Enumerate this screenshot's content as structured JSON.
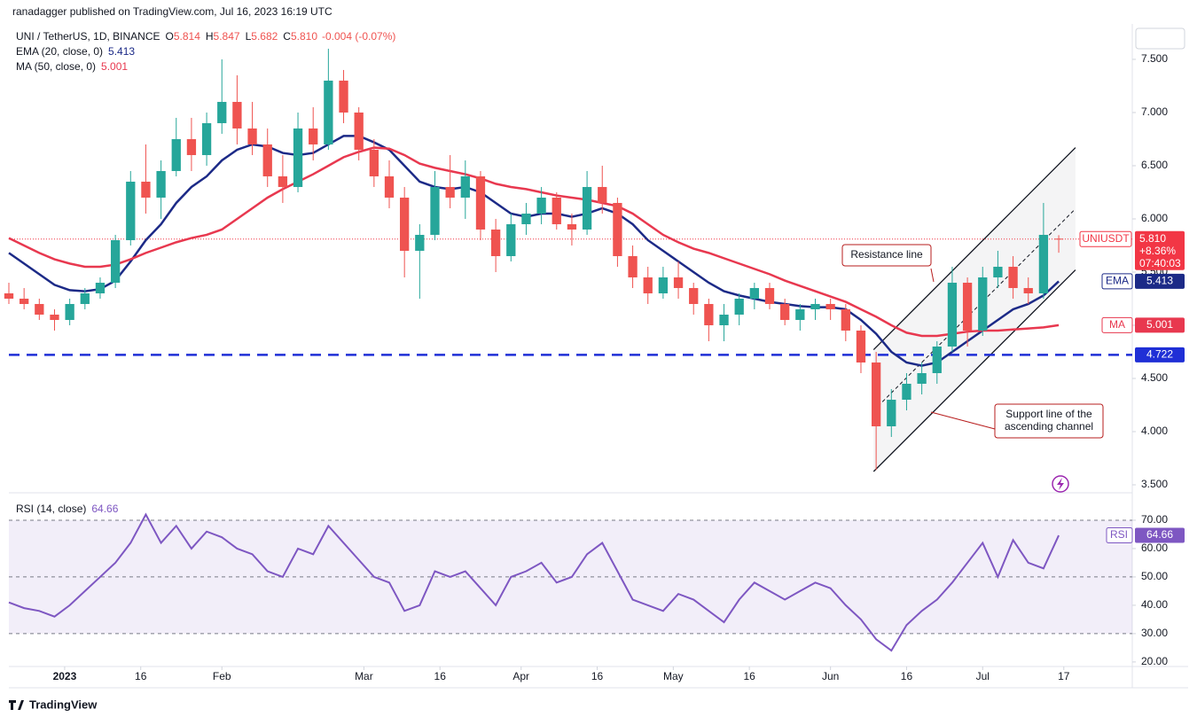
{
  "header": {
    "publisher": "ranadagger published on TradingView.com, Jul 16, 2023 16:19 UTC",
    "symbol": "UNI / TetherUS, 1D, BINANCE",
    "ohlc": [
      [
        "O",
        "5.814"
      ],
      [
        "H",
        "5.847"
      ],
      [
        "L",
        "5.682"
      ],
      [
        "C",
        "5.810"
      ]
    ],
    "change": "-0.004 (-0.07%)"
  },
  "footer": {
    "brand": "TradingView"
  },
  "chart_data": [
    {
      "type": "candlestick",
      "up_color": "#26a69a",
      "down_color": "#ef5350",
      "x": [
        0,
        3,
        6,
        9,
        12,
        15,
        18,
        21,
        24,
        27,
        30,
        33,
        36,
        39,
        42,
        45,
        48,
        51,
        54,
        57,
        60,
        63,
        66,
        69,
        72,
        75,
        78,
        81,
        84,
        87,
        90,
        93,
        96,
        99,
        102,
        105,
        108,
        111,
        114,
        117,
        120,
        123,
        126,
        129,
        132,
        135,
        138,
        141,
        144,
        147,
        150,
        153,
        156,
        159,
        162,
        165,
        168,
        171,
        174,
        177,
        180,
        183,
        186,
        189,
        192,
        195,
        198,
        201,
        204,
        207
      ],
      "ohlc": [
        [
          5.3,
          5.4,
          5.2,
          5.25
        ],
        [
          5.25,
          5.35,
          5.15,
          5.2
        ],
        [
          5.2,
          5.25,
          5.05,
          5.1
        ],
        [
          5.1,
          5.15,
          4.95,
          5.05
        ],
        [
          5.05,
          5.25,
          5.0,
          5.2
        ],
        [
          5.2,
          5.35,
          5.15,
          5.3
        ],
        [
          5.3,
          5.45,
          5.25,
          5.4
        ],
        [
          5.4,
          5.85,
          5.35,
          5.8
        ],
        [
          5.8,
          6.45,
          5.75,
          6.35
        ],
        [
          6.35,
          6.7,
          6.05,
          6.2
        ],
        [
          6.2,
          6.55,
          6.0,
          6.45
        ],
        [
          6.45,
          6.95,
          6.4,
          6.75
        ],
        [
          6.75,
          6.95,
          6.45,
          6.6
        ],
        [
          6.6,
          7.0,
          6.5,
          6.9
        ],
        [
          6.9,
          7.5,
          6.8,
          7.1
        ],
        [
          7.1,
          7.35,
          6.7,
          6.85
        ],
        [
          6.85,
          7.1,
          6.6,
          6.7
        ],
        [
          6.7,
          6.85,
          6.3,
          6.4
        ],
        [
          6.4,
          6.6,
          6.15,
          6.3
        ],
        [
          6.3,
          7.0,
          6.25,
          6.85
        ],
        [
          6.85,
          7.05,
          6.55,
          6.7
        ],
        [
          6.7,
          7.6,
          6.65,
          7.3
        ],
        [
          7.3,
          7.4,
          6.9,
          7.0
        ],
        [
          7.0,
          7.05,
          6.55,
          6.65
        ],
        [
          6.65,
          6.75,
          6.3,
          6.4
        ],
        [
          6.4,
          6.55,
          6.1,
          6.2
        ],
        [
          6.2,
          6.3,
          5.45,
          5.7
        ],
        [
          5.7,
          5.95,
          5.25,
          5.85
        ],
        [
          5.85,
          6.45,
          5.8,
          6.3
        ],
        [
          6.3,
          6.6,
          6.1,
          6.2
        ],
        [
          6.2,
          6.55,
          6.0,
          6.4
        ],
        [
          6.4,
          6.45,
          5.8,
          5.9
        ],
        [
          5.9,
          6.0,
          5.5,
          5.65
        ],
        [
          5.65,
          6.05,
          5.6,
          5.95
        ],
        [
          5.95,
          6.15,
          5.85,
          6.05
        ],
        [
          6.05,
          6.3,
          5.95,
          6.2
        ],
        [
          6.2,
          6.25,
          5.9,
          5.95
        ],
        [
          5.95,
          6.05,
          5.75,
          5.9
        ],
        [
          5.9,
          6.45,
          5.85,
          6.3
        ],
        [
          6.3,
          6.5,
          6.05,
          6.15
        ],
        [
          6.15,
          6.2,
          5.55,
          5.65
        ],
        [
          5.65,
          5.75,
          5.35,
          5.45
        ],
        [
          5.45,
          5.55,
          5.2,
          5.3
        ],
        [
          5.3,
          5.55,
          5.25,
          5.45
        ],
        [
          5.45,
          5.6,
          5.25,
          5.35
        ],
        [
          5.35,
          5.4,
          5.1,
          5.2
        ],
        [
          5.2,
          5.25,
          4.85,
          5.0
        ],
        [
          5.0,
          5.2,
          4.85,
          5.1
        ],
        [
          5.1,
          5.3,
          5.0,
          5.25
        ],
        [
          5.25,
          5.4,
          5.15,
          5.35
        ],
        [
          5.35,
          5.4,
          5.15,
          5.2
        ],
        [
          5.2,
          5.25,
          5.0,
          5.05
        ],
        [
          5.05,
          5.2,
          4.95,
          5.15
        ],
        [
          5.15,
          5.25,
          5.05,
          5.2
        ],
        [
          5.2,
          5.25,
          5.05,
          5.15
        ],
        [
          5.15,
          5.2,
          4.85,
          4.95
        ],
        [
          4.95,
          5.0,
          4.55,
          4.65
        ],
        [
          4.65,
          4.75,
          3.64,
          4.05
        ],
        [
          4.05,
          4.4,
          3.95,
          4.3
        ],
        [
          4.3,
          4.55,
          4.2,
          4.45
        ],
        [
          4.45,
          4.65,
          4.35,
          4.55
        ],
        [
          4.55,
          4.85,
          4.45,
          4.8
        ],
        [
          4.8,
          5.55,
          4.75,
          5.4
        ],
        [
          5.4,
          5.45,
          4.8,
          4.95
        ],
        [
          4.95,
          5.55,
          4.9,
          5.45
        ],
        [
          5.45,
          5.7,
          5.35,
          5.55
        ],
        [
          5.55,
          5.65,
          5.25,
          5.35
        ],
        [
          5.35,
          5.45,
          5.2,
          5.3
        ],
        [
          5.3,
          6.15,
          5.25,
          5.85
        ],
        [
          5.814,
          5.847,
          5.682,
          5.81
        ]
      ],
      "lines": [
        {
          "name": "EMA",
          "legend": "EMA (20, close, 0)",
          "last_label": "5.413",
          "color": "#1c2a87",
          "values": [
            5.68,
            5.58,
            5.48,
            5.38,
            5.33,
            5.32,
            5.34,
            5.42,
            5.6,
            5.8,
            5.95,
            6.15,
            6.3,
            6.4,
            6.55,
            6.65,
            6.7,
            6.68,
            6.62,
            6.6,
            6.62,
            6.7,
            6.78,
            6.78,
            6.72,
            6.65,
            6.5,
            6.35,
            6.3,
            6.28,
            6.3,
            6.25,
            6.15,
            6.05,
            6.02,
            6.05,
            6.05,
            6.02,
            6.05,
            6.1,
            6.05,
            5.95,
            5.8,
            5.7,
            5.6,
            5.5,
            5.4,
            5.32,
            5.28,
            5.25,
            5.22,
            5.2,
            5.18,
            5.17,
            5.17,
            5.15,
            5.05,
            4.92,
            4.75,
            4.65,
            4.62,
            4.65,
            4.75,
            4.85,
            4.95,
            5.05,
            5.15,
            5.2,
            5.28,
            5.413
          ]
        },
        {
          "name": "MA",
          "legend": "MA (50, close, 0)",
          "last_label": "5.001",
          "color": "#e8384f",
          "values": [
            5.82,
            5.75,
            5.68,
            5.62,
            5.58,
            5.55,
            5.55,
            5.57,
            5.62,
            5.68,
            5.73,
            5.78,
            5.82,
            5.85,
            5.9,
            6.0,
            6.1,
            6.2,
            6.28,
            6.35,
            6.42,
            6.5,
            6.58,
            6.63,
            6.67,
            6.66,
            6.6,
            6.52,
            6.48,
            6.45,
            6.42,
            6.38,
            6.33,
            6.3,
            6.28,
            6.25,
            6.22,
            6.2,
            6.18,
            6.15,
            6.12,
            6.05,
            5.95,
            5.85,
            5.78,
            5.72,
            5.68,
            5.63,
            5.58,
            5.53,
            5.48,
            5.42,
            5.37,
            5.32,
            5.27,
            5.22,
            5.15,
            5.08,
            5.0,
            4.93,
            4.9,
            4.9,
            4.92,
            4.94,
            4.95,
            4.95,
            4.96,
            4.97,
            4.98,
            5.001
          ]
        }
      ],
      "last": {
        "value": 5.81,
        "label": "5.810",
        "symbol": "UNIUSDT",
        "change": "+8.36%",
        "countdown": "07:40:03",
        "color": "#f23645"
      },
      "hline": {
        "value": 4.722,
        "label": "4.722",
        "color": "#1f2fd6"
      },
      "channel": {
        "upper": [
          [
            170.5,
            4.77
          ],
          [
            210.3,
            6.67
          ]
        ],
        "lower": [
          [
            170.5,
            3.625
          ],
          [
            210.3,
            5.52
          ]
        ]
      },
      "annotations": [
        {
          "lines": [
            "Resistance line"
          ]
        },
        {
          "lines": [
            "Support line of the",
            "ascending channel"
          ]
        }
      ],
      "xlim": [
        0,
        221.5
      ],
      "ylim": [
        3.45,
        7.833
      ],
      "yticks": [
        {
          "value": 7.5,
          "label": "7.500"
        },
        {
          "value": 7,
          "label": "7.000"
        },
        {
          "value": 6.5,
          "label": "6.500"
        },
        {
          "value": 6,
          "label": "6.000"
        },
        {
          "value": 5.5,
          "label": "5.500"
        },
        {
          "value": 5,
          "label": "5.000"
        },
        {
          "value": 4.5,
          "label": "4.500"
        },
        {
          "value": 4,
          "label": "4.000"
        },
        {
          "value": 3.5,
          "label": "3.500"
        }
      ],
      "xticks": [
        {
          "value": 11,
          "label": "2023"
        },
        {
          "value": 26,
          "label": "16"
        },
        {
          "value": 42,
          "label": "Feb"
        },
        {
          "value": 70,
          "label": "Mar"
        },
        {
          "value": 85,
          "label": "16"
        },
        {
          "value": 101,
          "label": "Apr"
        },
        {
          "value": 116,
          "label": "16"
        },
        {
          "value": 131,
          "label": "May"
        },
        {
          "value": 146,
          "label": "16"
        },
        {
          "value": 162,
          "label": "Jun"
        },
        {
          "value": 177,
          "label": "16"
        },
        {
          "value": 192,
          "label": "Jul"
        },
        {
          "value": 208,
          "label": "17"
        }
      ]
    },
    {
      "type": "line",
      "name": "RSI",
      "legend": "RSI (14, close)",
      "last_label": "64.66",
      "color": "#7e57c2",
      "values": [
        41,
        39,
        38,
        36,
        40,
        45,
        50,
        55,
        62,
        72,
        62,
        68,
        60,
        66,
        64,
        60,
        58,
        52,
        50,
        60,
        58,
        68,
        62,
        56,
        50,
        48,
        38,
        40,
        52,
        50,
        52,
        46,
        40,
        50,
        52,
        55,
        48,
        50,
        58,
        62,
        52,
        42,
        40,
        38,
        44,
        42,
        38,
        34,
        42,
        48,
        45,
        42,
        45,
        48,
        46,
        40,
        35,
        28,
        24,
        33,
        38,
        42,
        48,
        55,
        62,
        50,
        63,
        55,
        53,
        64.66
      ],
      "ylim": [
        18.4,
        77.8
      ],
      "yticks": [
        {
          "value": 70,
          "label": "70.00"
        },
        {
          "value": 60,
          "label": "60.00"
        },
        {
          "value": 50,
          "label": "50.00"
        },
        {
          "value": 40,
          "label": "40.00"
        },
        {
          "value": 30,
          "label": "30.00"
        },
        {
          "value": 20,
          "label": "20.00"
        }
      ],
      "hlines": [
        70,
        50,
        30
      ]
    }
  ]
}
